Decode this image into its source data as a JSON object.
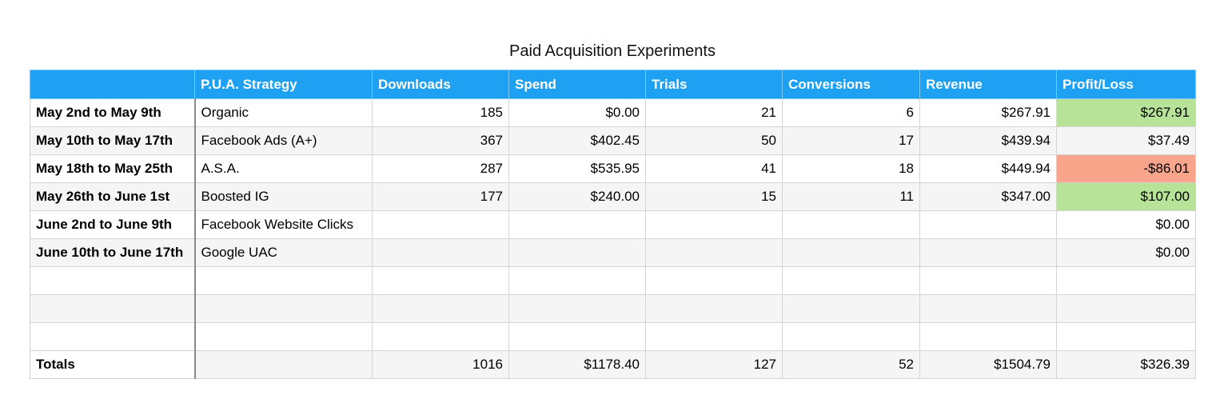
{
  "title": "Paid Acquisition Experiments",
  "colors": {
    "header_bg": "#1ea1f2",
    "profit_bg": "#b7e399",
    "loss_bg": "#f9a58c"
  },
  "headers": [
    "",
    "P.U.A. Strategy",
    "Downloads",
    "Spend",
    "Trials",
    "Conversions",
    "Revenue",
    "Profit/Loss"
  ],
  "rows": [
    {
      "period": "May 2nd to May 9th",
      "strategy": "Organic",
      "downloads": "185",
      "spend": "$0.00",
      "trials": "21",
      "conversions": "6",
      "revenue": "$267.91",
      "profit_loss": "$267.91",
      "status": "profit"
    },
    {
      "period": "May 10th to May 17th",
      "strategy": "Facebook Ads (A+)",
      "downloads": "367",
      "spend": "$402.45",
      "trials": "50",
      "conversions": "17",
      "revenue": "$439.94",
      "profit_loss": "$37.49",
      "status": "neutral"
    },
    {
      "period": "May 18th to May 25th",
      "strategy": "A.S.A.",
      "downloads": "287",
      "spend": "$535.95",
      "trials": "41",
      "conversions": "18",
      "revenue": "$449.94",
      "profit_loss": "-$86.01",
      "status": "loss"
    },
    {
      "period": "May 26th to June 1st",
      "strategy": "Boosted IG",
      "downloads": "177",
      "spend": "$240.00",
      "trials": "15",
      "conversions": "11",
      "revenue": "$347.00",
      "profit_loss": "$107.00",
      "status": "profit"
    },
    {
      "period": "June 2nd to June 9th",
      "strategy": "Facebook Website Clicks",
      "downloads": "",
      "spend": "",
      "trials": "",
      "conversions": "",
      "revenue": "",
      "profit_loss": "$0.00",
      "status": "neutral"
    },
    {
      "period": "June 10th to June 17th",
      "strategy": "Google UAC",
      "downloads": "",
      "spend": "",
      "trials": "",
      "conversions": "",
      "revenue": "",
      "profit_loss": "$0.00",
      "status": "neutral"
    },
    {
      "period": "",
      "strategy": "",
      "downloads": "",
      "spend": "",
      "trials": "",
      "conversions": "",
      "revenue": "",
      "profit_loss": "",
      "status": "neutral"
    },
    {
      "period": "",
      "strategy": "",
      "downloads": "",
      "spend": "",
      "trials": "",
      "conversions": "",
      "revenue": "",
      "profit_loss": "",
      "status": "neutral"
    },
    {
      "period": "",
      "strategy": "",
      "downloads": "",
      "spend": "",
      "trials": "",
      "conversions": "",
      "revenue": "",
      "profit_loss": "",
      "status": "neutral"
    }
  ],
  "totals": {
    "label": "Totals",
    "strategy": "",
    "downloads": "1016",
    "spend": "$1178.40",
    "trials": "127",
    "conversions": "52",
    "revenue": "$1504.79",
    "profit_loss": "$326.39",
    "status": "profit"
  }
}
